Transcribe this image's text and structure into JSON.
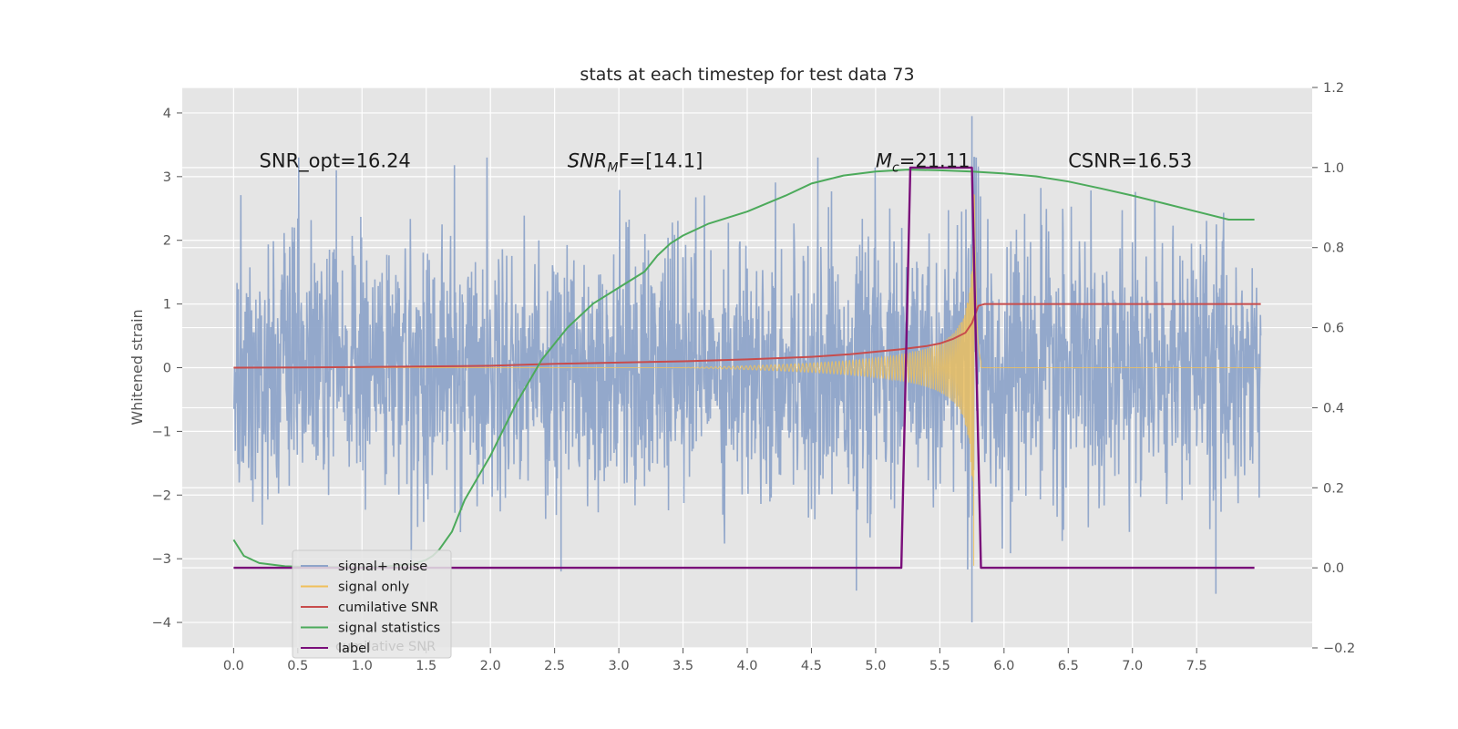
{
  "chart_data": {
    "type": "line",
    "title": "stats at each timestep for test data 73",
    "ylabel": "Whitened strain",
    "xlim": [
      -0.4,
      8.4
    ],
    "ylim": [
      -4.4,
      4.4
    ],
    "y2lim": [
      -0.2,
      1.2
    ],
    "grid": true,
    "x_ticks": [
      0.0,
      0.5,
      1.0,
      1.5,
      2.0,
      2.5,
      3.0,
      3.5,
      4.0,
      4.5,
      5.0,
      5.5,
      6.0,
      6.5,
      7.0,
      7.5
    ],
    "x_tick_labels": [
      "0.0",
      "0.5",
      "1.0",
      "1.5",
      "2.0",
      "2.5",
      "3.0",
      "3.5",
      "4.0",
      "4.5",
      "5.0",
      "5.5",
      "6.0",
      "6.5",
      "7.0",
      "7.5"
    ],
    "y_ticks": [
      -4,
      -3,
      -2,
      -1,
      0,
      1,
      2,
      3,
      4
    ],
    "y_tick_labels": [
      "−4",
      "−3",
      "−2",
      "−1",
      "0",
      "1",
      "2",
      "3",
      "4"
    ],
    "y2_ticks": [
      -0.2,
      0.0,
      0.2,
      0.4,
      0.6,
      0.8,
      1.0,
      1.2
    ],
    "y2_tick_labels": [
      "−0.2",
      "0.0",
      "0.2",
      "0.4",
      "0.6",
      "0.8",
      "1.0",
      "1.2"
    ],
    "annotations": {
      "snr_opt": "SNR_opt=16.24",
      "snr_mf_main": "SNR",
      "snr_mf_sub": "M",
      "snr_mf_rest": "F=[14.1]",
      "mc_main": "M",
      "mc_sub": "c",
      "mc_rest": "=21.11",
      "csnr": "CSNR=16.53"
    },
    "annotation_positions": {
      "snr_opt": [
        0.2,
        3.15
      ],
      "snr_mf": [
        2.6,
        3.15
      ],
      "mc": [
        5.0,
        3.15
      ],
      "csnr": [
        6.5,
        3.15
      ]
    },
    "legend": {
      "placement": "lower-left",
      "entries": [
        {
          "label": "signal+ noise",
          "color": "#8ea4c9"
        },
        {
          "label": "signal only",
          "color": "#f0c05a"
        },
        {
          "label": "cumilative SNR",
          "color": "#c84c4c"
        },
        {
          "label": "signal statistics",
          "color": "#4caa5b"
        },
        {
          "label": "label",
          "color": "#7a0e7a"
        }
      ],
      "hidden_text": "cumilative SNR"
    },
    "series": [
      {
        "name": "signal+ noise",
        "axis": "left",
        "color": "#8ea4c9",
        "x_range": [
          0.0,
          8.0
        ],
        "approx_spread": [
          -2.0,
          2.0
        ],
        "note_spikes": [
          [
            5.75,
            3.95
          ],
          [
            5.75,
            -4.0
          ],
          [
            4.85,
            -3.5
          ],
          [
            7.65,
            -3.55
          ],
          [
            4.55,
            3.3
          ],
          [
            0.8,
            3.1
          ],
          [
            2.55,
            -3.2
          ]
        ]
      },
      {
        "name": "signal only",
        "axis": "left",
        "color": "#f0c05a",
        "x_range": [
          0.0,
          8.0
        ],
        "chirp_peak_x": 5.77,
        "chirp_peak_amp": 3.3,
        "merger_end_x": 5.82
      },
      {
        "name": "cumilative SNR",
        "axis": "left",
        "color": "#c84c4c",
        "x": [
          0.0,
          0.5,
          1.0,
          1.5,
          2.0,
          2.5,
          3.0,
          3.5,
          4.0,
          4.5,
          4.8,
          5.0,
          5.2,
          5.4,
          5.5,
          5.6,
          5.7,
          5.75,
          5.8,
          5.85,
          6.0,
          6.5,
          7.0,
          7.5,
          8.0
        ],
        "values": [
          0.0,
          0.005,
          0.01,
          0.02,
          0.03,
          0.06,
          0.08,
          0.1,
          0.13,
          0.17,
          0.21,
          0.25,
          0.29,
          0.34,
          0.38,
          0.45,
          0.55,
          0.7,
          0.97,
          1.0,
          1.0,
          1.0,
          1.0,
          1.0,
          1.0
        ]
      },
      {
        "name": "signal statistics",
        "axis": "right",
        "color": "#4caa5b",
        "x": [
          0.0,
          0.08,
          0.2,
          0.4,
          0.6,
          0.8,
          1.0,
          1.2,
          1.4,
          1.5,
          1.55,
          1.6,
          1.7,
          1.8,
          2.0,
          2.2,
          2.4,
          2.6,
          2.8,
          3.0,
          3.2,
          3.3,
          3.4,
          3.5,
          3.7,
          4.0,
          4.3,
          4.5,
          4.75,
          5.0,
          5.25,
          5.5,
          5.75,
          6.0,
          6.25,
          6.5,
          6.75,
          7.0,
          7.25,
          7.5,
          7.75,
          7.95
        ],
        "values": [
          0.07,
          0.03,
          0.012,
          0.004,
          0.002,
          0.002,
          0.002,
          0.004,
          0.01,
          0.02,
          0.03,
          0.045,
          0.09,
          0.17,
          0.28,
          0.41,
          0.52,
          0.6,
          0.66,
          0.7,
          0.74,
          0.78,
          0.81,
          0.83,
          0.86,
          0.89,
          0.93,
          0.96,
          0.98,
          0.99,
          0.995,
          0.993,
          0.99,
          0.985,
          0.978,
          0.965,
          0.948,
          0.93,
          0.91,
          0.89,
          0.87,
          0.87
        ]
      },
      {
        "name": "label",
        "axis": "right",
        "color": "#7a0e7a",
        "x": [
          0.0,
          5.2,
          5.27,
          5.75,
          5.82,
          7.95
        ],
        "values": [
          0.0,
          0.0,
          1.0,
          1.0,
          0.0,
          0.0
        ]
      }
    ]
  }
}
